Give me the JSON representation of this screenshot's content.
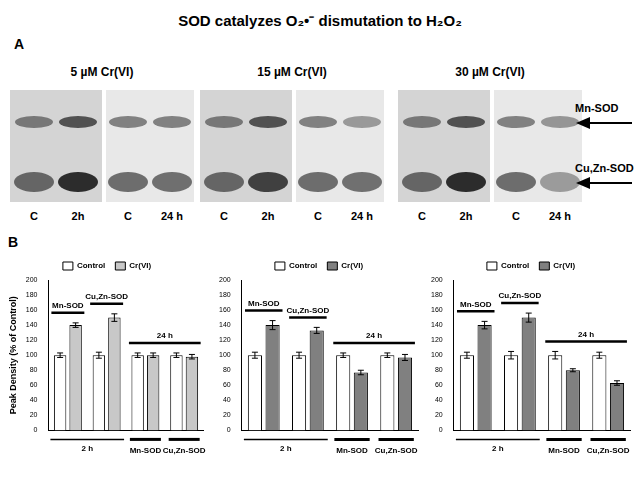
{
  "title": "SOD catalyzes O₂•⁻ dismutation to H₂O₂",
  "panel_a": {
    "label": "A",
    "gels": [
      {
        "title": "5 µM Cr(VI)",
        "lanes": [
          "C",
          "2h",
          "C",
          "24 h"
        ]
      },
      {
        "title": "15 µM Cr(VI)",
        "lanes": [
          "C",
          "2h",
          "C",
          "24 h"
        ]
      },
      {
        "title": "30 µM Cr(VI)",
        "lanes": [
          "C",
          "2h",
          "C",
          "24 h"
        ]
      }
    ],
    "band_labels": [
      "Mn-SOD",
      "Cu,Zn-SOD"
    ]
  },
  "panel_b": {
    "label": "B"
  },
  "chart_data": [
    {
      "type": "bar",
      "y_label": "Peak Density (% of Control)",
      "categories": [
        null,
        null,
        "Mn-SOD",
        "Cu,Zn-SOD"
      ],
      "group_labels_above": [
        {
          "text": "Mn-SOD",
          "from": 0,
          "to": 0
        },
        {
          "text": "Cu,Zn-SOD",
          "from": 1,
          "to": 1
        },
        {
          "text": "24 h",
          "from": 2,
          "to": 3
        }
      ],
      "group_labels_below": [
        {
          "text": "2 h",
          "from": 0,
          "to": 1
        }
      ],
      "series": [
        {
          "name": "Control",
          "color": "#ffffff",
          "values": [
            100,
            100,
            100,
            100
          ],
          "errors": [
            3,
            4,
            3,
            3
          ]
        },
        {
          "name": "Cr(VI)",
          "color": "#c8c8c8",
          "values": [
            140,
            150,
            100,
            98
          ],
          "errors": [
            3,
            5,
            3,
            3
          ]
        }
      ],
      "ylim": [
        0,
        200
      ],
      "yticks": [
        0,
        20,
        40,
        60,
        80,
        100,
        120,
        140,
        160,
        180,
        200
      ],
      "grid": false,
      "legend": "top"
    },
    {
      "type": "bar",
      "categories": [
        null,
        null,
        "Mn-SOD",
        "Cu,Zn-SOD"
      ],
      "group_labels_above": [
        {
          "text": "Mn-SOD",
          "from": 0,
          "to": 0
        },
        {
          "text": "Cu,Zn-SOD",
          "from": 1,
          "to": 1
        },
        {
          "text": "24 h",
          "from": 2,
          "to": 3
        }
      ],
      "group_labels_below": [
        {
          "text": "2 h",
          "from": 0,
          "to": 1
        }
      ],
      "series": [
        {
          "name": "Control",
          "color": "#ffffff",
          "values": [
            100,
            100,
            100,
            100
          ],
          "errors": [
            4,
            4,
            3,
            3
          ]
        },
        {
          "name": "Cr(VI)",
          "color": "#808080",
          "values": [
            140,
            133,
            77,
            97
          ],
          "errors": [
            6,
            4,
            3,
            4
          ]
        }
      ],
      "ylim": [
        0,
        200
      ],
      "yticks": [
        0,
        20,
        40,
        60,
        80,
        100,
        120,
        140,
        160,
        180,
        200
      ],
      "grid": false,
      "legend": "top"
    },
    {
      "type": "bar",
      "categories": [
        null,
        null,
        "Mn-SOD",
        "Cu,Zn-SOD"
      ],
      "group_labels_above": [
        {
          "text": "Mn-SOD",
          "from": 0,
          "to": 0
        },
        {
          "text": "Cu,Zn-SOD",
          "from": 1,
          "to": 1
        },
        {
          "text": "24 h",
          "from": 2,
          "to": 3
        }
      ],
      "group_labels_below": [
        {
          "text": "2 h",
          "from": 0,
          "to": 1
        }
      ],
      "series": [
        {
          "name": "Control",
          "color": "#ffffff",
          "values": [
            100,
            100,
            100,
            100
          ],
          "errors": [
            4,
            5,
            5,
            4
          ]
        },
        {
          "name": "Cr(VI)",
          "color": "#808080",
          "values": [
            140,
            150,
            80,
            63
          ],
          "errors": [
            5,
            6,
            2,
            3
          ]
        }
      ],
      "ylim": [
        0,
        200
      ],
      "yticks": [
        0,
        20,
        40,
        60,
        80,
        100,
        120,
        140,
        160,
        180,
        200
      ],
      "grid": false,
      "legend": "top"
    }
  ]
}
